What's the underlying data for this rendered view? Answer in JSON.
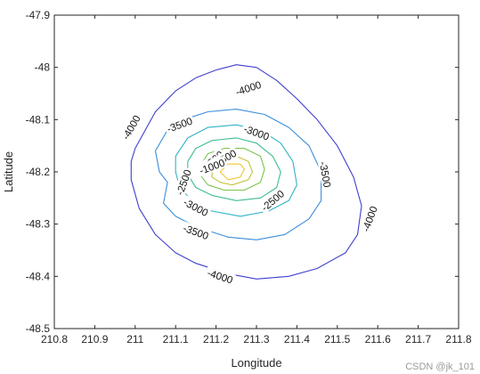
{
  "chart_data": {
    "type": "contour",
    "xlabel": "Longitude",
    "ylabel": "Latitude",
    "xlim": [
      210.8,
      211.8
    ],
    "ylim": [
      -48.5,
      -47.9
    ],
    "xticks": [
      "210.8",
      "210.9",
      "211",
      "211.1",
      "211.2",
      "211.3",
      "211.4",
      "211.5",
      "211.6",
      "211.7",
      "211.8"
    ],
    "yticks": [
      "-47.9",
      "-48",
      "-48.1",
      "-48.2",
      "-48.3",
      "-48.4",
      "-48.5"
    ],
    "grid": false,
    "series": [
      {
        "level": -4000,
        "color": "#3f3fce",
        "points": [
          [
            211.0,
            -48.155
          ],
          [
            211.05,
            -48.085
          ],
          [
            211.1,
            -48.045
          ],
          [
            211.15,
            -48.02
          ],
          [
            211.2,
            -48.005
          ],
          [
            211.25,
            -47.995
          ],
          [
            211.3,
            -48.0
          ],
          [
            211.35,
            -48.025
          ],
          [
            211.4,
            -48.06
          ],
          [
            211.45,
            -48.1
          ],
          [
            211.5,
            -48.15
          ],
          [
            211.54,
            -48.21
          ],
          [
            211.56,
            -48.265
          ],
          [
            211.55,
            -48.32
          ],
          [
            211.52,
            -48.355
          ],
          [
            211.45,
            -48.385
          ],
          [
            211.38,
            -48.4
          ],
          [
            211.3,
            -48.405
          ],
          [
            211.23,
            -48.395
          ],
          [
            211.15,
            -48.375
          ],
          [
            211.1,
            -48.355
          ],
          [
            211.05,
            -48.32
          ],
          [
            211.01,
            -48.27
          ],
          [
            210.99,
            -48.215
          ],
          [
            210.99,
            -48.18
          ],
          [
            211.0,
            -48.155
          ]
        ]
      },
      {
        "level": -3500,
        "color": "#3a8edb",
        "points": [
          [
            211.05,
            -48.16
          ],
          [
            211.08,
            -48.12
          ],
          [
            211.12,
            -48.1
          ],
          [
            211.18,
            -48.085
          ],
          [
            211.25,
            -48.08
          ],
          [
            211.32,
            -48.09
          ],
          [
            211.38,
            -48.115
          ],
          [
            211.43,
            -48.15
          ],
          [
            211.46,
            -48.2
          ],
          [
            211.46,
            -48.255
          ],
          [
            211.43,
            -48.29
          ],
          [
            211.37,
            -48.32
          ],
          [
            211.3,
            -48.33
          ],
          [
            211.23,
            -48.325
          ],
          [
            211.15,
            -48.305
          ],
          [
            211.1,
            -48.285
          ],
          [
            211.07,
            -48.26
          ],
          [
            211.08,
            -48.22
          ],
          [
            211.06,
            -48.2
          ],
          [
            211.05,
            -48.16
          ]
        ]
      },
      {
        "level": -3000,
        "color": "#2fb3c6",
        "points": [
          [
            211.1,
            -48.17
          ],
          [
            211.13,
            -48.135
          ],
          [
            211.18,
            -48.115
          ],
          [
            211.25,
            -48.11
          ],
          [
            211.31,
            -48.12
          ],
          [
            211.36,
            -48.145
          ],
          [
            211.39,
            -48.18
          ],
          [
            211.4,
            -48.225
          ],
          [
            211.38,
            -48.255
          ],
          [
            211.33,
            -48.275
          ],
          [
            211.26,
            -48.285
          ],
          [
            211.19,
            -48.275
          ],
          [
            211.14,
            -48.255
          ],
          [
            211.11,
            -48.23
          ],
          [
            211.1,
            -48.2
          ],
          [
            211.1,
            -48.17
          ]
        ]
      },
      {
        "level": -2500,
        "color": "#3dbd8e",
        "points": [
          [
            211.13,
            -48.18
          ],
          [
            211.15,
            -48.155
          ],
          [
            211.19,
            -48.14
          ],
          [
            211.25,
            -48.135
          ],
          [
            211.3,
            -48.145
          ],
          [
            211.34,
            -48.17
          ],
          [
            211.36,
            -48.2
          ],
          [
            211.35,
            -48.23
          ],
          [
            211.31,
            -48.25
          ],
          [
            211.25,
            -48.255
          ],
          [
            211.19,
            -48.245
          ],
          [
            211.15,
            -48.23
          ],
          [
            211.13,
            -48.205
          ],
          [
            211.13,
            -48.18
          ]
        ]
      },
      {
        "level": -2000,
        "color": "#7cc44f",
        "points": [
          [
            211.16,
            -48.19
          ],
          [
            211.18,
            -48.165
          ],
          [
            211.22,
            -48.155
          ],
          [
            211.27,
            -48.155
          ],
          [
            211.31,
            -48.17
          ],
          [
            211.32,
            -48.195
          ],
          [
            211.31,
            -48.22
          ],
          [
            211.27,
            -48.235
          ],
          [
            211.22,
            -48.235
          ],
          [
            211.18,
            -48.225
          ],
          [
            211.16,
            -48.205
          ],
          [
            211.16,
            -48.19
          ]
        ]
      },
      {
        "level": -1500,
        "color": "#c4c43c",
        "points": [
          [
            211.19,
            -48.195
          ],
          [
            211.21,
            -48.175
          ],
          [
            211.25,
            -48.17
          ],
          [
            211.28,
            -48.18
          ],
          [
            211.29,
            -48.2
          ],
          [
            211.28,
            -48.215
          ],
          [
            211.24,
            -48.225
          ],
          [
            211.21,
            -48.22
          ],
          [
            211.19,
            -48.21
          ],
          [
            211.19,
            -48.195
          ]
        ]
      },
      {
        "level": -1000,
        "color": "#f0c531",
        "points": [
          [
            211.21,
            -48.2
          ],
          [
            211.23,
            -48.185
          ],
          [
            211.26,
            -48.185
          ],
          [
            211.27,
            -48.195
          ],
          [
            211.26,
            -48.21
          ],
          [
            211.23,
            -48.215
          ],
          [
            211.21,
            -48.2
          ]
        ]
      }
    ],
    "labels": [
      {
        "text": "-4000",
        "x": 211.28,
        "y": -48.04,
        "angle": -18
      },
      {
        "text": "-4000",
        "x": 210.99,
        "y": -48.115,
        "angle": -60
      },
      {
        "text": "-4000",
        "x": 211.21,
        "y": -48.4,
        "angle": 18
      },
      {
        "text": "-4000",
        "x": 211.58,
        "y": -48.29,
        "angle": -70
      },
      {
        "text": "-3500",
        "x": 211.11,
        "y": -48.11,
        "angle": -20
      },
      {
        "text": "-3500",
        "x": 211.47,
        "y": -48.205,
        "angle": 80
      },
      {
        "text": "-3500",
        "x": 211.15,
        "y": -48.315,
        "angle": 20
      },
      {
        "text": "-3000",
        "x": 211.3,
        "y": -48.125,
        "angle": 20
      },
      {
        "text": "-3000",
        "x": 211.15,
        "y": -48.268,
        "angle": 28
      },
      {
        "text": "-2500",
        "x": 211.12,
        "y": -48.22,
        "angle": -70
      },
      {
        "text": "-2500",
        "x": 211.34,
        "y": -48.255,
        "angle": -40
      },
      {
        "text": "-2000",
        "x": 211.19,
        "y": -48.18,
        "angle": -40
      },
      {
        "text": "-1500",
        "x": 211.22,
        "y": -48.175,
        "angle": -30
      },
      {
        "text": "-1000",
        "x": 211.19,
        "y": -48.19,
        "angle": -20
      }
    ]
  },
  "watermark": "CSDN @jk_101"
}
